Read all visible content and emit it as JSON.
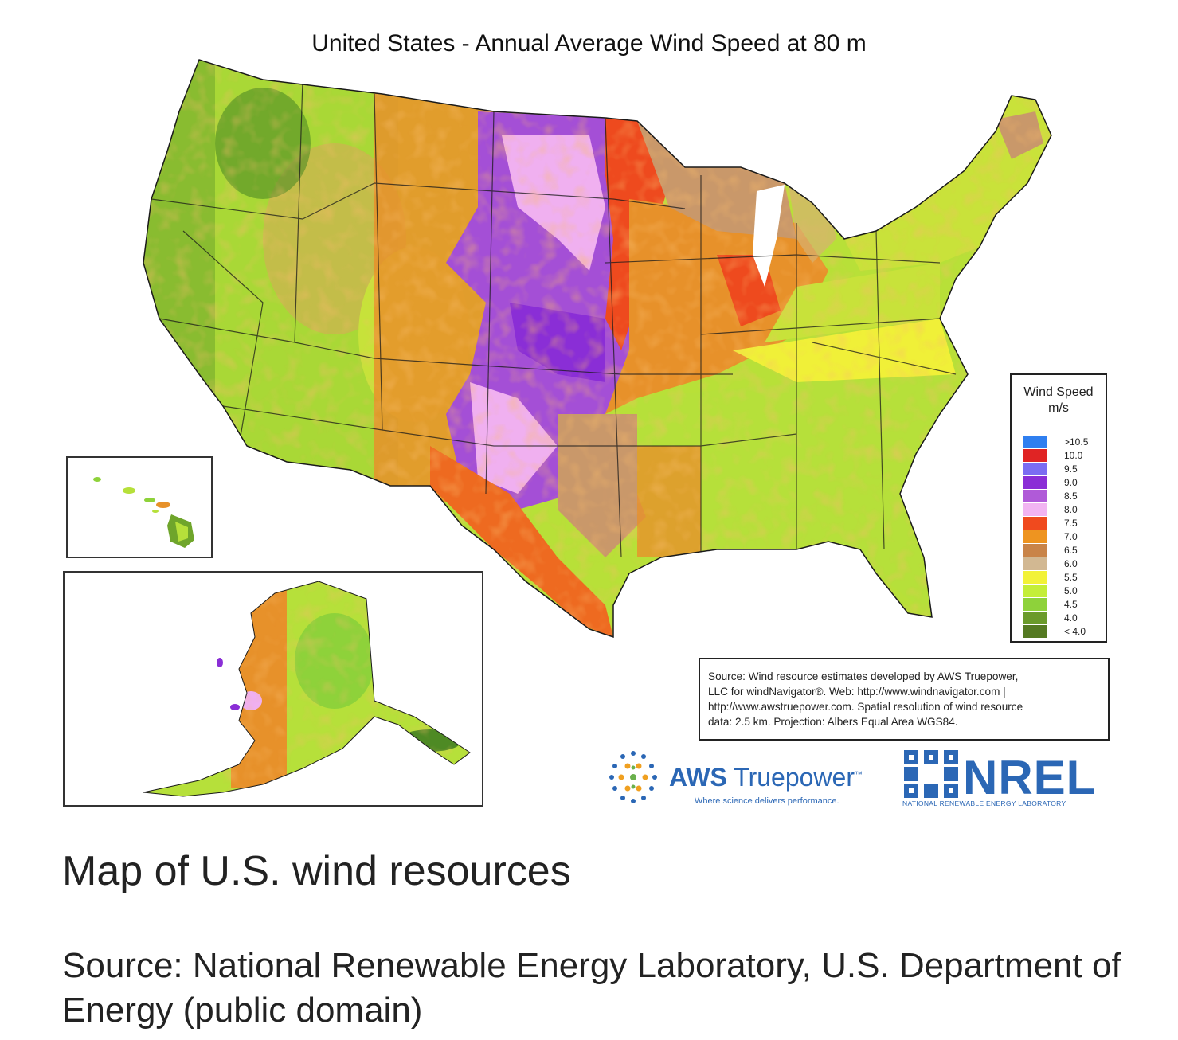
{
  "map": {
    "title": "United States - Annual Average Wind Speed at 80 m",
    "regions": [
      "Contiguous United States",
      "Hawaii",
      "Alaska"
    ]
  },
  "legend": {
    "title": "Wind Speed",
    "unit": "m/s",
    "items": [
      {
        "label": ">10.5",
        "color": "#2f7ff0"
      },
      {
        "label": "10.0",
        "color": "#e02424"
      },
      {
        "label": "9.5",
        "color": "#7b6cf2"
      },
      {
        "label": "9.0",
        "color": "#8a2ed6"
      },
      {
        "label": "8.5",
        "color": "#b05ad8"
      },
      {
        "label": "8.0",
        "color": "#f2b4f2"
      },
      {
        "label": "7.5",
        "color": "#f04a1e"
      },
      {
        "label": "7.0",
        "color": "#ee9420"
      },
      {
        "label": "6.5",
        "color": "#c98448"
      },
      {
        "label": "6.0",
        "color": "#d2b892"
      },
      {
        "label": "5.5",
        "color": "#f2f238"
      },
      {
        "label": "5.0",
        "color": "#c4ee38"
      },
      {
        "label": "4.5",
        "color": "#8ed23a"
      },
      {
        "label": "4.0",
        "color": "#6a9a2a"
      },
      {
        "label": "< 4.0",
        "color": "#557a22"
      }
    ]
  },
  "source_note": {
    "line1": "Source: Wind resource estimates developed by AWS Truepower,",
    "line2": "LLC for windNavigator®. Web: http://www.windnavigator.com |",
    "line3": "http://www.awstruepower.com. Spatial resolution of wind resource",
    "line4": "data: 2.5 km. Projection: Albers Equal Area WGS84."
  },
  "logos": {
    "aws_bold": "AWS",
    "aws_name": "Truepower",
    "aws_tm": "™",
    "aws_tagline": "Where science delivers performance.",
    "nrel_name": "NREL",
    "nrel_subtitle": "NATIONAL RENEWABLE ENERGY LABORATORY"
  },
  "caption": {
    "title": "Map of U.S. wind resources",
    "source": "Source: National Renewable Energy Laboratory, U.S. Department of Energy (public domain)"
  }
}
